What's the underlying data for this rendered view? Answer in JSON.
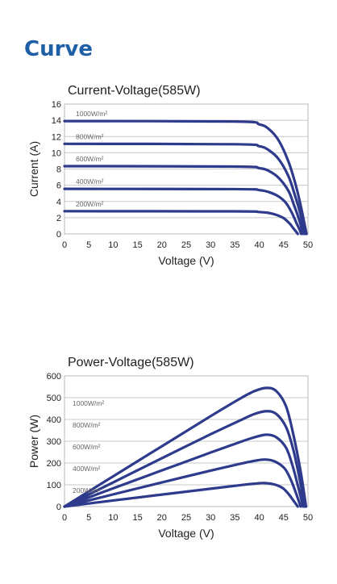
{
  "page": {
    "heading": "Curve"
  },
  "chart_data": [
    {
      "type": "line",
      "title": "Current-Voltage(585W)",
      "xlabel": "Voltage (V)",
      "ylabel": "Current (A)",
      "xlim": [
        0,
        50
      ],
      "ylim": [
        0,
        16
      ],
      "xticks": [
        0,
        5,
        10,
        15,
        20,
        25,
        30,
        35,
        40,
        45,
        50
      ],
      "yticks": [
        0,
        2,
        4,
        6,
        8,
        10,
        12,
        14,
        16
      ],
      "grid": true,
      "line_color": "#2e3a8c",
      "series": [
        {
          "name": "1000W/m²",
          "x": [
            0,
            35,
            40,
            42,
            44,
            46,
            47.5,
            48.5,
            49.3,
            49.7
          ],
          "y": [
            13.9,
            13.85,
            13.5,
            12.9,
            11.5,
            8.9,
            6.0,
            3.5,
            1.2,
            0
          ]
        },
        {
          "name": "800W/m²",
          "x": [
            0,
            35,
            40,
            42,
            44,
            46,
            47.3,
            48.3,
            49.0,
            49.4
          ],
          "y": [
            11.1,
            11.05,
            10.8,
            10.3,
            9.2,
            7.1,
            4.8,
            2.8,
            1.0,
            0
          ]
        },
        {
          "name": "600W/m²",
          "x": [
            0,
            35,
            40,
            42,
            44,
            46,
            47.1,
            48.0,
            48.7,
            49.0
          ],
          "y": [
            8.35,
            8.3,
            8.1,
            7.75,
            6.9,
            5.3,
            3.6,
            2.1,
            0.7,
            0
          ]
        },
        {
          "name": "400W/m²",
          "x": [
            0,
            35,
            40,
            42,
            44,
            45.5,
            46.7,
            47.6,
            48.3,
            48.6
          ],
          "y": [
            5.55,
            5.52,
            5.4,
            5.15,
            4.6,
            3.8,
            2.6,
            1.4,
            0.5,
            0
          ]
        },
        {
          "name": "200W/m²",
          "x": [
            0,
            35,
            40,
            42,
            43.5,
            45,
            46.2,
            47.0,
            47.6,
            47.9
          ],
          "y": [
            2.8,
            2.78,
            2.7,
            2.58,
            2.35,
            1.95,
            1.3,
            0.7,
            0.25,
            0
          ]
        }
      ]
    },
    {
      "type": "line",
      "title": "Power-Voltage(585W)",
      "xlabel": "Voltage (V)",
      "ylabel": "Power (W)",
      "xlim": [
        0,
        50
      ],
      "ylim": [
        0,
        600
      ],
      "xticks": [
        0,
        5,
        10,
        15,
        20,
        25,
        30,
        35,
        40,
        45,
        50
      ],
      "yticks": [
        0,
        100,
        200,
        300,
        400,
        500,
        600
      ],
      "grid": true,
      "line_color": "#2e3a8c",
      "series": [
        {
          "name": "1000W/m²",
          "x": [
            0,
            10,
            20,
            30,
            36,
            39,
            41.5,
            43.5,
            45.5,
            47,
            48.5,
            49.6
          ],
          "y": [
            0,
            139,
            277,
            415,
            495,
            530,
            545,
            530,
            460,
            330,
            160,
            0
          ]
        },
        {
          "name": "800W/m²",
          "x": [
            0,
            10,
            20,
            30,
            36,
            39,
            41.5,
            43.5,
            45.5,
            47,
            48.3,
            49.3
          ],
          "y": [
            0,
            111,
            222,
            332,
            395,
            425,
            438,
            425,
            365,
            260,
            125,
            0
          ]
        },
        {
          "name": "600W/m²",
          "x": [
            0,
            10,
            20,
            30,
            36,
            39,
            41.5,
            43.5,
            45.5,
            46.8,
            48.0,
            49.0
          ],
          "y": [
            0,
            84,
            166,
            248,
            296,
            318,
            330,
            318,
            270,
            190,
            90,
            0
          ]
        },
        {
          "name": "400W/m²",
          "x": [
            0,
            10,
            20,
            30,
            36,
            39,
            41.2,
            43.2,
            45.2,
            46.5,
            47.6,
            48.5
          ],
          "y": [
            0,
            56,
            111,
            165,
            196,
            210,
            216,
            207,
            175,
            122,
            58,
            0
          ]
        },
        {
          "name": "200W/m²",
          "x": [
            0,
            10,
            20,
            30,
            36,
            39,
            41,
            43,
            44.8,
            46,
            47.0,
            47.9
          ],
          "y": [
            0,
            28,
            55,
            82,
            98,
            105,
            108,
            102,
            85,
            58,
            28,
            0
          ]
        }
      ]
    }
  ]
}
